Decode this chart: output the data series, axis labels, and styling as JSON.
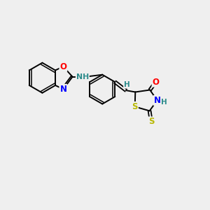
{
  "background_color": "#efefef",
  "figsize": [
    3.0,
    3.0
  ],
  "dpi": 100,
  "xlim": [
    0.0,
    10.0
  ],
  "ylim": [
    1.5,
    9.5
  ]
}
